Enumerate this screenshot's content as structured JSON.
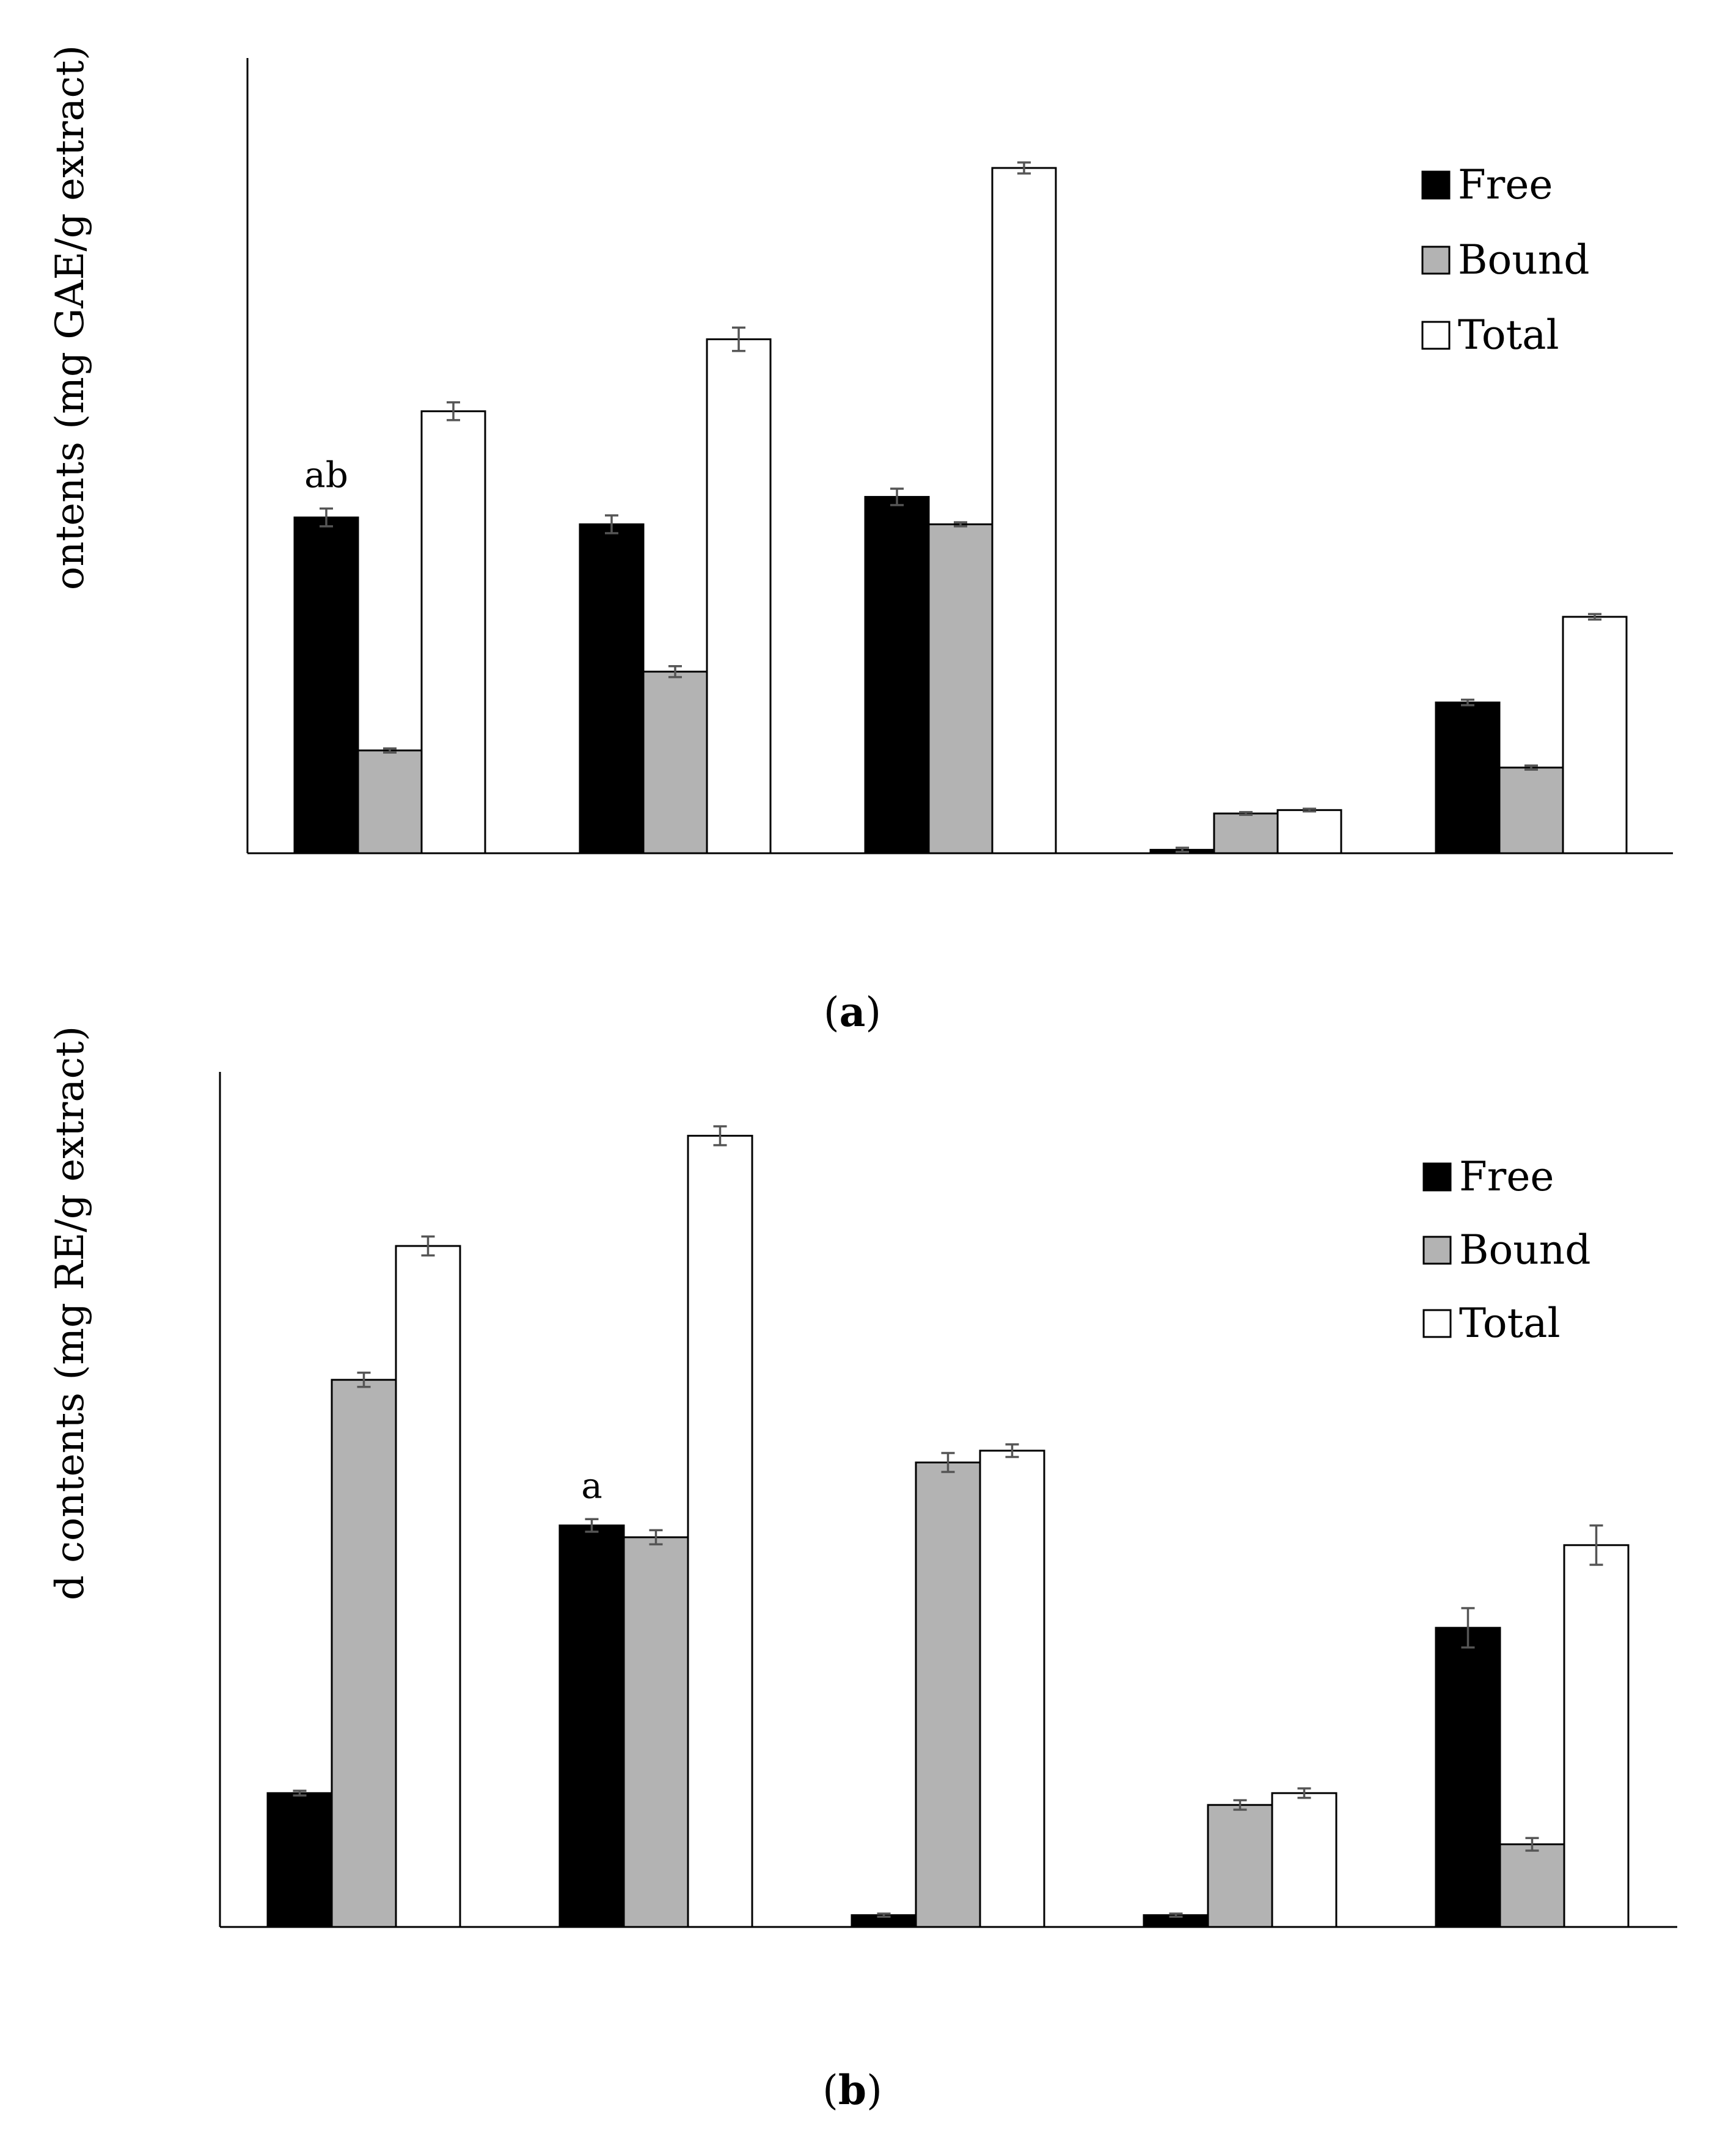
{
  "chart_data": [
    {
      "panel": "a",
      "type": "bar",
      "title": "",
      "ylabel": "ontents (mg GAE/g extract)",
      "xlabel": "",
      "ylim": [
        0,
        100
      ],
      "categories": [
        "",
        "",
        "",
        "",
        ""
      ],
      "caption_open": "(",
      "caption_letter": "a",
      "caption_close": ")",
      "legend_position": "top-right",
      "series": [
        {
          "name": "Free",
          "color": "#000000",
          "values": [
            49,
            48,
            52,
            0.5,
            22
          ],
          "errors": [
            1.3,
            1.3,
            1.2,
            0.3,
            0.4
          ]
        },
        {
          "name": "Bound",
          "color": "#b3b3b3",
          "values": [
            15,
            26.5,
            48,
            5.8,
            12.5
          ],
          "errors": [
            0.3,
            0.8,
            0.3,
            0.2,
            0.3
          ]
        },
        {
          "name": "Total",
          "color": "#ffffff",
          "values": [
            64.5,
            75,
            100,
            6.3,
            34.5
          ],
          "errors": [
            1.3,
            1.7,
            0.8,
            0.2,
            0.4
          ]
        }
      ],
      "annotations": [
        {
          "category_index": 0,
          "series_index": 0,
          "text": "ab"
        }
      ]
    },
    {
      "panel": "b",
      "type": "bar",
      "title": "",
      "ylabel": "d contents (mg RE/g extract)",
      "xlabel": "",
      "ylim": [
        0,
        100
      ],
      "categories": [
        "",
        "",
        "",
        "",
        ""
      ],
      "caption_open": "(",
      "caption_letter": "b",
      "caption_close": ")",
      "legend_position": "top-right",
      "series": [
        {
          "name": "Free",
          "color": "#000000",
          "values": [
            17,
            51,
            1.5,
            1.5,
            38
          ],
          "errors": [
            0.3,
            0.8,
            0.2,
            0.2,
            2.5
          ]
        },
        {
          "name": "Bound",
          "color": "#b3b3b3",
          "values": [
            69.5,
            49.5,
            59,
            15.5,
            10.5
          ],
          "errors": [
            0.9,
            0.9,
            1.2,
            0.6,
            0.8
          ]
        },
        {
          "name": "Total",
          "color": "#ffffff",
          "values": [
            86.5,
            100.5,
            60.5,
            17,
            48.5
          ],
          "errors": [
            1.2,
            1.2,
            0.8,
            0.6,
            2.5
          ]
        }
      ],
      "annotations": [
        {
          "category_index": 1,
          "series_index": 0,
          "text": "a"
        }
      ]
    }
  ]
}
